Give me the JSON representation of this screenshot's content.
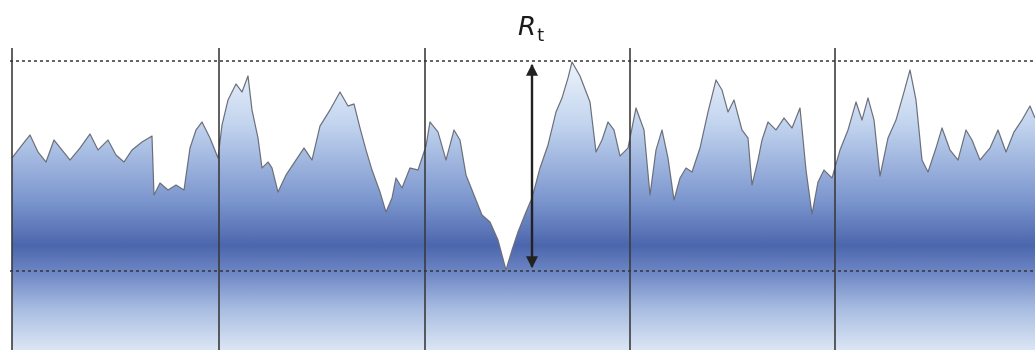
{
  "diagram": {
    "label_main": "R",
    "label_sub": "t",
    "colors": {
      "fill_light": "#dfe9f7",
      "fill_mid": "#8aa6d6",
      "fill_dark": "#4a66ab",
      "outline": "#6a6f7a",
      "reference_line": "#333333",
      "divider": "#3a3a3a",
      "arrow": "#222222",
      "background": "#ffffff"
    }
  }
}
